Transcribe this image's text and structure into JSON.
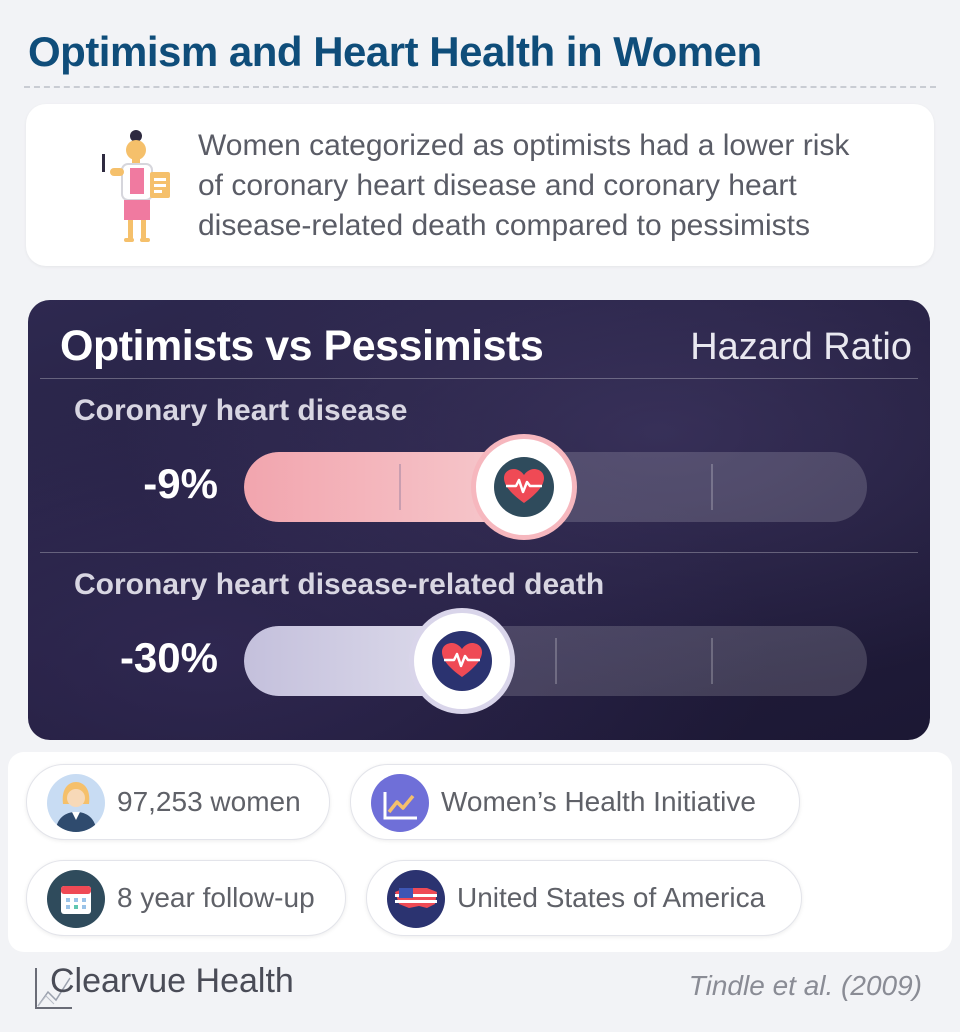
{
  "title": "Optimism and Heart Health in Women",
  "summary": {
    "icon": "woman-doctor-icon",
    "lines": [
      "Women categorized as optimists had a lower risk",
      "of coronary heart disease and coronary heart",
      "disease-related death compared to pessimists"
    ]
  },
  "panel": {
    "title": "Optimists vs Pessimists",
    "subtitle": "Hazard Ratio",
    "metrics": [
      {
        "label": "Coronary heart disease",
        "value": "-9%",
        "fraction": 0.45,
        "color": "#f2a5ae",
        "icon": "heart-pulse-icon"
      },
      {
        "label": "Coronary heart disease-related death",
        "value": "-30%",
        "fraction": 0.35,
        "color": "#c4c0dc",
        "icon": "heart-pulse-icon"
      }
    ]
  },
  "stats": [
    {
      "text": "97,253 women",
      "icon": "woman-avatar-icon"
    },
    {
      "text": "Women’s Health Initiative",
      "icon": "line-chart-icon"
    },
    {
      "text": "8 year follow-up",
      "icon": "calendar-icon"
    },
    {
      "text": "United States of America",
      "icon": "usa-map-icon"
    }
  ],
  "footer": {
    "brand": "Clearvue Health",
    "citation": "Tindle et al. (2009)"
  },
  "colors": {
    "title": "#0f4d7a",
    "panel_bg": "#221d3d",
    "accent_pink": "#f2a5ae",
    "accent_lavender": "#c4c0dc"
  }
}
